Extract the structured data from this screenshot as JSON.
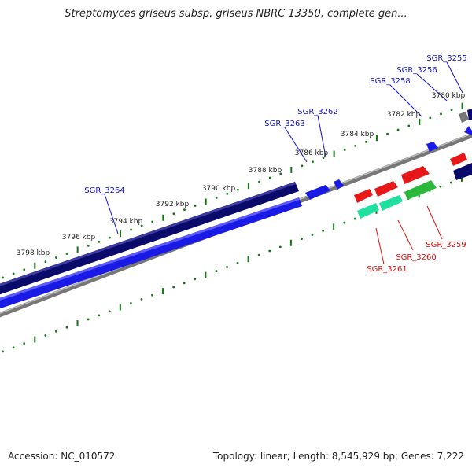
{
  "title": "Streptomyces griseus subsp. griseus NBRC 13350, complete gen...",
  "footer": {
    "accession": "Accession: NC_010572",
    "summary": "Topology: linear; Length: 8,545,929 bp; Genes: 7,222"
  },
  "scale_labels": [
    "3798 kbp",
    "3796 kbp",
    "3794 kbp",
    "3792 kbp",
    "3790 kbp",
    "3788 kbp",
    "3786 kbp",
    "3784 kbp",
    "3782 kbp",
    "3780 kbp"
  ],
  "genes": {
    "forward": [
      "SGR_3264",
      "SGR_3263",
      "SGR_3262",
      "SGR_3258",
      "SGR_3256",
      "SGR_3255"
    ],
    "reverse": [
      "SGR_3261",
      "SGR_3260",
      "SGR_3259"
    ]
  },
  "colors": {
    "forward_label": "#1010cc",
    "reverse_label": "#dd1111",
    "scale_tick": "#117711",
    "navy": "#0a0a6a",
    "blue": "#1a1ae6",
    "red": "#e81818",
    "green": "#2ab83a",
    "aqua": "#20e0a0",
    "axis": "#888888"
  }
}
